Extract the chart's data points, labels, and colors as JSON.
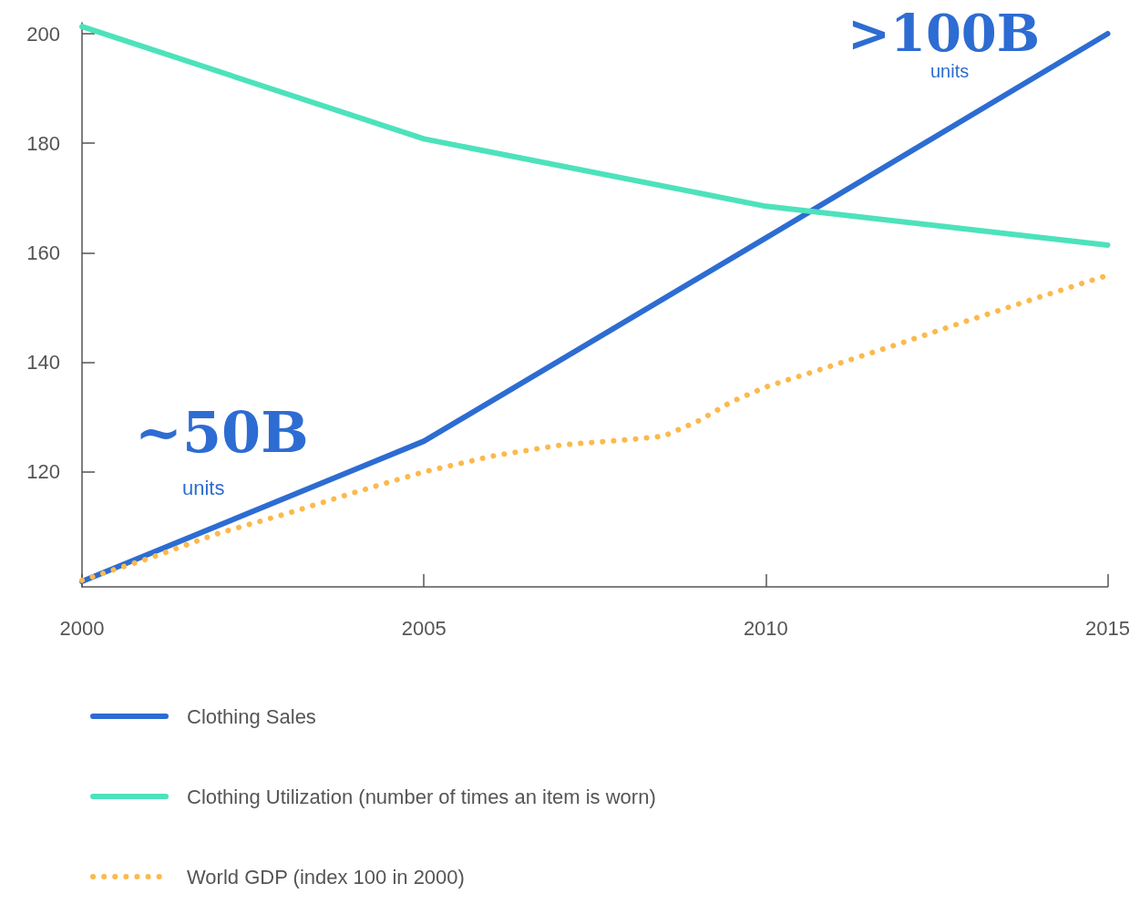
{
  "chart_data": {
    "type": "line",
    "xlim": [
      2000,
      2015
    ],
    "xticks": [
      2000,
      2005,
      2010,
      2015
    ],
    "ylim": [
      99,
      202
    ],
    "yticks": [
      120,
      140,
      160,
      180,
      200
    ],
    "grid": false,
    "legend": "bottom",
    "marker": "none",
    "annotations": [
      "~50B",
      "units",
      ">100B",
      "units"
    ],
    "series": [
      {
        "name": "Clothing Sales",
        "color": "#2d6cd2",
        "line_style": "solid",
        "x": [
          2000,
          2005,
          2010,
          2015
        ],
        "values": [
          100,
          125.6,
          162.7,
          200
        ]
      },
      {
        "name": "Clothing Utilization (number of times an item is worn)",
        "color": "#4de2bb",
        "line_style": "solid",
        "x": [
          2000,
          2005,
          2010,
          2015
        ],
        "values": [
          201.3,
          180.8,
          168.5,
          161.4
        ]
      },
      {
        "name": "World GDP (index 100 in 2000)",
        "color": "#fcb94d",
        "line_style": "dotted",
        "x": [
          2000,
          2001,
          2002,
          2003,
          2004,
          2005,
          2006,
          2007,
          2008,
          2008.5,
          2009,
          2009.5,
          2010,
          2011,
          2012,
          2013,
          2014,
          2015
        ],
        "values": [
          100.2,
          104.3,
          108.8,
          112.4,
          116.3,
          120,
          122.9,
          124.9,
          125.9,
          126.5,
          129.2,
          132.8,
          135.5,
          139.5,
          143.6,
          147.8,
          151.9,
          155.9
        ]
      }
    ]
  }
}
